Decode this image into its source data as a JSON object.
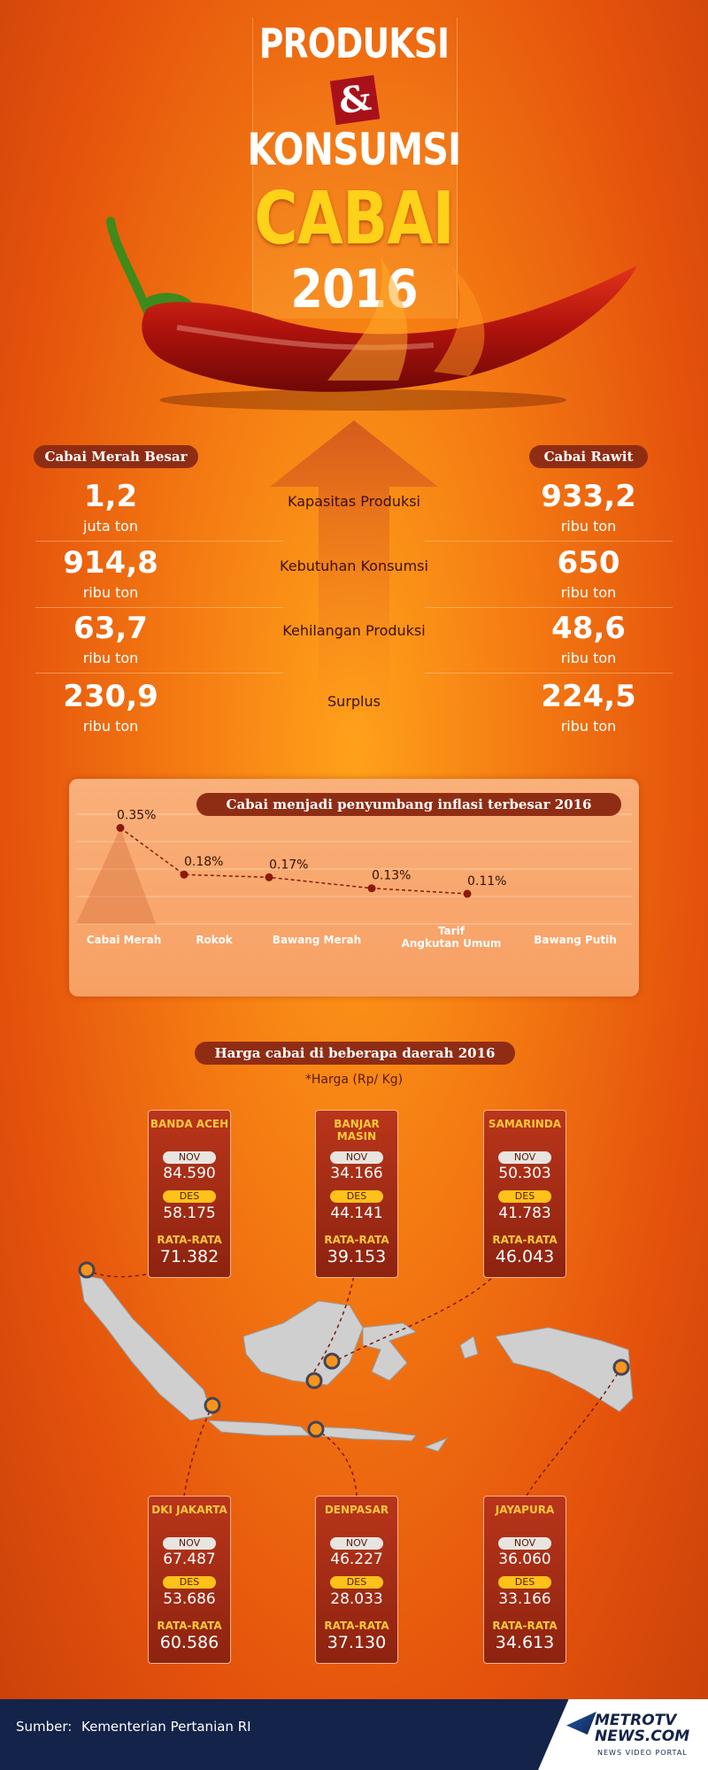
{
  "header": {
    "line1": "PRODUKSI",
    "amp": "&",
    "line2": "KONSUMSI",
    "line3": "CABAI",
    "year": "2016"
  },
  "columns": {
    "left_title": "Cabai Merah Besar",
    "right_title": "Cabai Rawit"
  },
  "rows": [
    {
      "label": "Kapasitas Produksi",
      "left_value": "1,2",
      "left_unit": "juta ton",
      "right_value": "933,2",
      "right_unit": "ribu ton"
    },
    {
      "label": "Kebutuhan Konsumsi",
      "left_value": "914,8",
      "left_unit": "ribu ton",
      "right_value": "650",
      "right_unit": "ribu ton"
    },
    {
      "label": "Kehilangan Produksi",
      "left_value": "63,7",
      "left_unit": "ribu ton",
      "right_value": "48,6",
      "right_unit": "ribu ton"
    },
    {
      "label": "Surplus",
      "left_value": "230,9",
      "left_unit": "ribu ton",
      "right_value": "224,5",
      "right_unit": "ribu ton"
    }
  ],
  "chart_data": {
    "type": "line",
    "title": "Cabai menjadi penyumbang inflasi terbesar 2016",
    "categories": [
      "Cabai Merah",
      "Rokok",
      "Bawang Merah",
      "Tarif Angkutan Umum",
      "Bawang Putih"
    ],
    "values": [
      0.35,
      0.18,
      0.17,
      0.13,
      0.11
    ],
    "labels": [
      "0.35%",
      "0.18%",
      "0.17%",
      "0.13%",
      "0.11%"
    ],
    "ylim": [
      0,
      0.4
    ],
    "grid": true
  },
  "prices": {
    "title": "Harga cabai di beberapa daerah 2016",
    "note": "*Harga (Rp/ Kg)",
    "nov_label": "NOV",
    "des_label": "DES",
    "avg_label": "RATA-RATA",
    "cities": [
      {
        "name": "BANDA ACEH",
        "nov": "84.590",
        "des": "58.175",
        "avg": "71.382"
      },
      {
        "name": "BANJAR MASIN",
        "nov": "34.166",
        "des": "44.141",
        "avg": "39.153"
      },
      {
        "name": "SAMARINDA",
        "nov": "50.303",
        "des": "41.783",
        "avg": "46.043"
      },
      {
        "name": "DKI JAKARTA",
        "nov": "67.487",
        "des": "53.686",
        "avg": "60.586"
      },
      {
        "name": "DENPASAR",
        "nov": "46.227",
        "des": "28.033",
        "avg": "37.130"
      },
      {
        "name": "JAYAPURA",
        "nov": "36.060",
        "des": "33.166",
        "avg": "34.613"
      }
    ]
  },
  "footer": {
    "source_label": "Sumber:",
    "source": "Kementerian Pertanian RI",
    "brand1": "METROTV",
    "brand2": "NEWS.COM",
    "tagline": "NEWS VIDEO PORTAL"
  },
  "colors": {
    "accent": "#ffc83a",
    "card": "#a52c14",
    "footer": "#13234a"
  }
}
